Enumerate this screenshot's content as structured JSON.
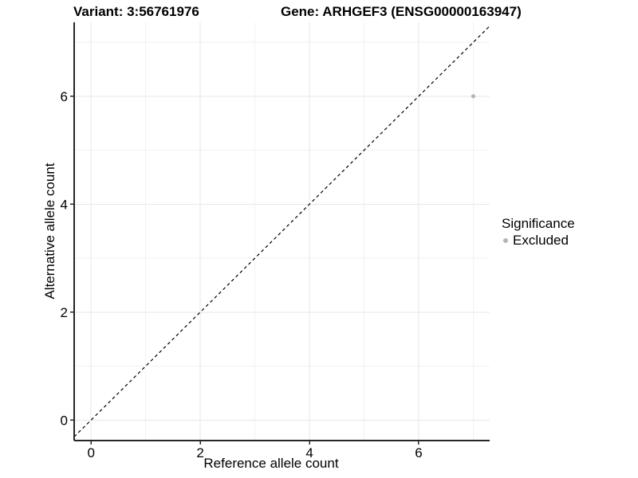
{
  "chart_data": {
    "type": "scatter",
    "titles": {
      "variant": "Variant: 3:56761976",
      "gene": "Gene: ARHGEF3 (ENSG00000163947)"
    },
    "xlabel": "Reference allele count",
    "ylabel": "Alternative allele count",
    "xlim": [
      -0.31,
      7.3
    ],
    "ylim": [
      -0.38,
      7.37
    ],
    "x_ticks": [
      0,
      2,
      4,
      6
    ],
    "y_ticks": [
      0,
      2,
      4,
      6
    ],
    "x_minor_ticks": [
      1,
      3,
      5,
      7
    ],
    "y_minor_ticks": [
      1,
      3,
      5,
      7
    ],
    "grid": "on",
    "points": [
      {
        "x": 7,
        "y": 6,
        "series": "Excluded"
      }
    ],
    "reference_line": {
      "slope": 1,
      "intercept": 0,
      "style": "dashed",
      "color": "#000000"
    },
    "legend": {
      "title": "Significance",
      "position": "right",
      "items": [
        {
          "label": "Excluded",
          "color": "#b5b5b5"
        }
      ]
    },
    "colors": {
      "background": "#ffffff",
      "point": "#b5b5b5",
      "grid_major": "#e7e7e7",
      "grid_minor": "#f2f2f2",
      "axis_line": "#262626",
      "text": "#000000"
    }
  }
}
